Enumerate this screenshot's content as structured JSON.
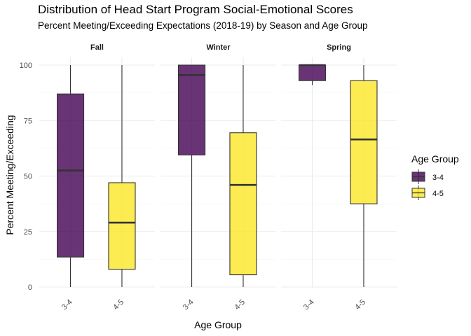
{
  "chart_data": {
    "type": "boxplot",
    "title": "Distribution of Head Start Program Social-Emotional Scores",
    "subtitle": "Percent Meeting/Exceeding Expectations (2018-19) by Season and Age Group",
    "xlabel": "Age Group",
    "ylabel": "Percent Meeting/Exceeding",
    "ylim": [
      0,
      100
    ],
    "yticks": [
      0,
      25,
      50,
      75,
      100
    ],
    "grid": true,
    "legend": {
      "title": "Age Group",
      "position": "right",
      "entries": [
        {
          "label": "3-4",
          "color": "#440154"
        },
        {
          "label": "4-5",
          "color": "#FDE725"
        }
      ]
    },
    "facets": [
      {
        "name": "Fall",
        "groups": [
          {
            "category": "3-4",
            "min": 0,
            "q1": 13.5,
            "median": 52.5,
            "q3": 87,
            "max": 100
          },
          {
            "category": "4-5",
            "min": 0,
            "q1": 8,
            "median": 29,
            "q3": 47,
            "max": 100
          }
        ]
      },
      {
        "name": "Winter",
        "groups": [
          {
            "category": "3-4",
            "min": 0,
            "q1": 59.5,
            "median": 95.5,
            "q3": 100,
            "max": 100
          },
          {
            "category": "4-5",
            "min": 0,
            "q1": 5.5,
            "median": 46,
            "q3": 69.5,
            "max": 100
          }
        ]
      },
      {
        "name": "Spring",
        "groups": [
          {
            "category": "3-4",
            "min": 91,
            "q1": 93,
            "median": 100,
            "q3": 100,
            "max": 100
          },
          {
            "category": "4-5",
            "min": 0,
            "q1": 37.5,
            "median": 66.5,
            "q3": 93,
            "max": 100
          }
        ]
      }
    ]
  }
}
